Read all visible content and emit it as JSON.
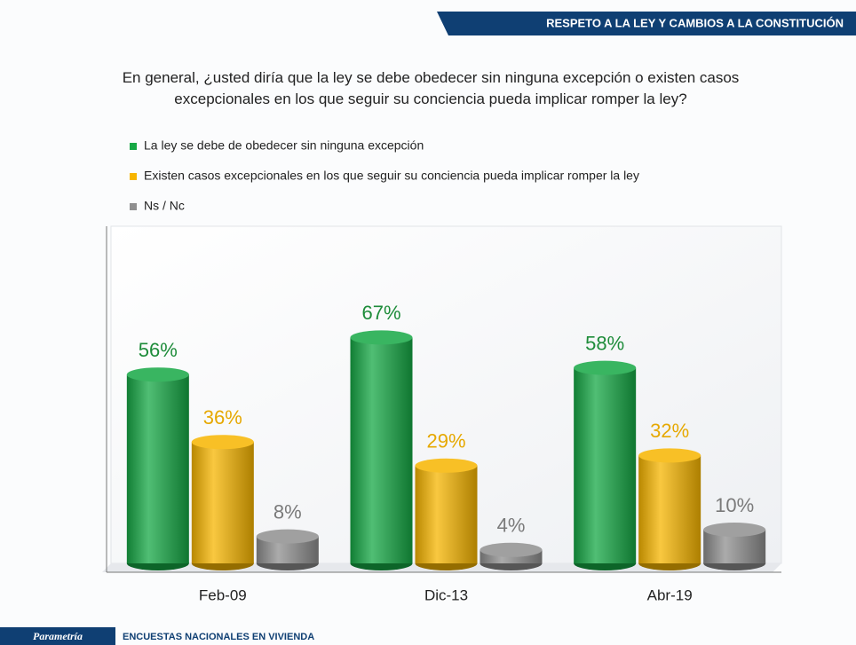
{
  "header": {
    "title": "RESPETO A LA LEY Y CAMBIOS A LA CONSTITUCIÓN"
  },
  "footer": {
    "brand": "Parametría",
    "text": "ENCUESTAS NACIONALES EN VIVIENDA"
  },
  "chart_data": {
    "type": "bar",
    "title": "En general, ¿usted diría que la ley se debe obedecer sin ninguna excepción o existen casos excepcionales en los que seguir su conciencia pueda implicar romper la ley?",
    "categories": [
      "Feb-09",
      "Dic-13",
      "Abr-19"
    ],
    "series": [
      {
        "name": "La ley se debe de obedecer sin ninguna excepción",
        "color": "#16a845",
        "values": [
          56,
          67,
          58
        ],
        "value_labels": [
          "56%",
          "67%",
          "58%"
        ]
      },
      {
        "name": "Existen casos excepcionales en los que seguir su conciencia pueda implicar romper la ley",
        "color": "#f7b500",
        "values": [
          36,
          29,
          32
        ],
        "value_labels": [
          "36%",
          "29%",
          "32%"
        ]
      },
      {
        "name": "Ns / Nc",
        "color": "#8f8f8f",
        "values": [
          8,
          4,
          10
        ],
        "value_labels": [
          "8%",
          "4%",
          "10%"
        ]
      }
    ],
    "ylim": [
      0,
      100
    ]
  }
}
